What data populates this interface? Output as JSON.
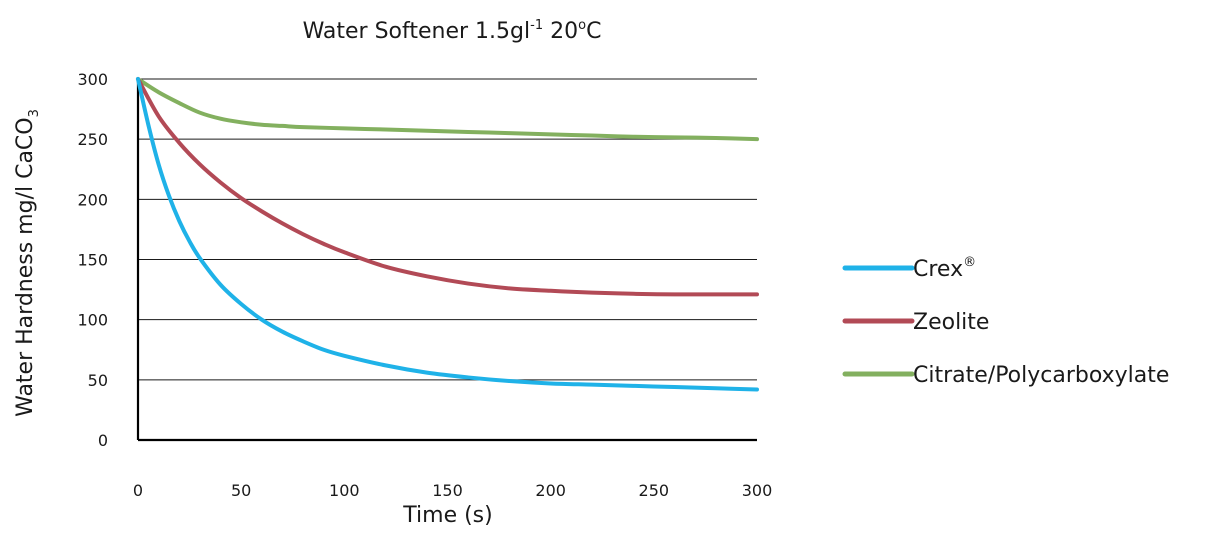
{
  "chart_data": {
    "type": "line",
    "title": {
      "text": "Water Softener 1.5gl",
      "sup": "-1",
      "rest": " 20",
      "deg": "o",
      "unit": "C"
    },
    "xlabel": "Time (s)",
    "ylabel": {
      "text": "Water Hardness mg/l CaCO",
      "sub": "3"
    },
    "xlim": [
      0,
      300
    ],
    "ylim": [
      0,
      300
    ],
    "xticks": [
      0,
      50,
      100,
      150,
      200,
      250,
      300
    ],
    "yticks": [
      0,
      50,
      100,
      150,
      200,
      250,
      300
    ],
    "grid": "horizontal",
    "legend": "right",
    "series": [
      {
        "name": "Crex",
        "mark": "®",
        "color": "#1fb2e8",
        "x": [
          0,
          5,
          10,
          15,
          20,
          25,
          30,
          40,
          50,
          60,
          70,
          80,
          90,
          100,
          120,
          140,
          160,
          180,
          200,
          220,
          240,
          260,
          280,
          300
        ],
        "y": [
          300,
          262,
          229,
          203,
          182,
          165,
          151,
          129,
          113,
          100,
          90,
          82,
          75,
          70,
          62,
          56,
          52,
          49,
          47,
          46,
          45,
          44,
          43,
          42
        ]
      },
      {
        "name": "Zeolite",
        "color": "#b24a56",
        "x": [
          0,
          10,
          20,
          30,
          40,
          50,
          60,
          70,
          80,
          90,
          100,
          120,
          140,
          160,
          180,
          200,
          220,
          240,
          260,
          280,
          300
        ],
        "y": [
          300,
          269,
          247,
          229,
          214,
          201,
          190,
          180,
          171,
          163,
          156,
          144,
          136,
          130,
          126,
          124,
          122.5,
          121.5,
          121,
          121,
          121
        ]
      },
      {
        "name": "Citrate/Polycarboxylate",
        "color": "#83b05f",
        "x": [
          0,
          10,
          20,
          30,
          40,
          50,
          60,
          70,
          80,
          100,
          120,
          140,
          160,
          180,
          200,
          220,
          240,
          260,
          280,
          300
        ],
        "y": [
          300,
          289,
          280,
          272,
          267,
          264,
          262,
          261,
          260,
          259,
          258,
          257,
          256,
          255,
          254,
          253,
          252,
          251.5,
          251,
          250
        ]
      }
    ]
  }
}
